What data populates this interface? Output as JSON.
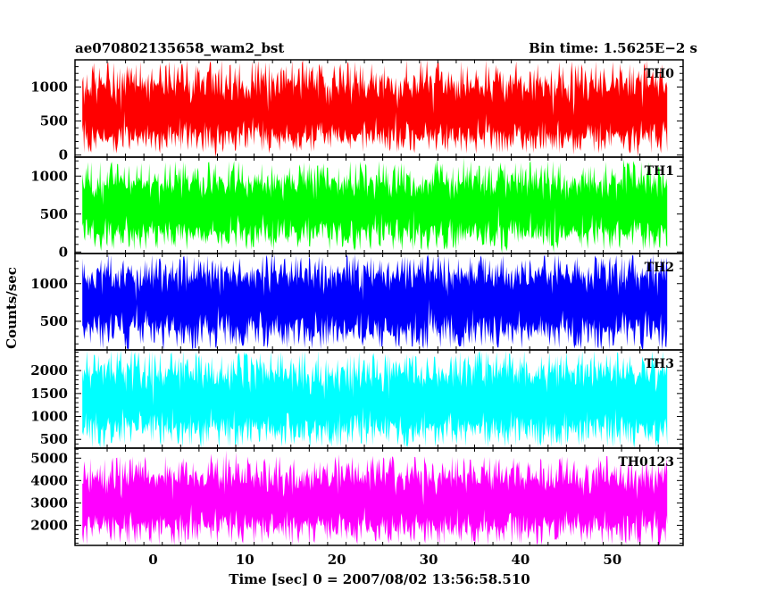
{
  "header": {
    "left_title": "ae070802135658_wam2_bst",
    "right_title": "Bin time: 1.5625E−2 s"
  },
  "axes": {
    "xlabel": "Time [sec] 0 = 2007/08/02 13:56:58.510",
    "ylabel": "Counts/sec"
  },
  "chart_data": {
    "type": "line",
    "xlim": [
      -8.5,
      57.7
    ],
    "data_x_range": [
      -7.7,
      56.0
    ],
    "x_ticks": [
      0,
      10,
      20,
      30,
      40,
      50
    ],
    "x_tick_labels": [
      "0",
      "10",
      "20",
      "30",
      "40",
      "50"
    ],
    "panels": [
      {
        "name": "TH0",
        "color": "#ff0000",
        "ylim": [
          -30,
          1400
        ],
        "y_ticks": [
          0,
          500,
          1000
        ],
        "y_tick_labels": [
          "0",
          "500",
          "1000"
        ],
        "mean": 600,
        "low": 20,
        "high": 1400
      },
      {
        "name": "TH1",
        "color": "#00ff00",
        "ylim": [
          -20,
          1250
        ],
        "y_ticks": [
          0,
          500,
          1000
        ],
        "y_tick_labels": [
          "0",
          "500",
          "1000"
        ],
        "mean": 560,
        "low": 10,
        "high": 1200
      },
      {
        "name": "TH2",
        "color": "#0000ff",
        "ylim": [
          120,
          1400
        ],
        "y_ticks": [
          500,
          1000
        ],
        "y_tick_labels": [
          "500",
          "1000"
        ],
        "mean": 750,
        "low": 120,
        "high": 1400
      },
      {
        "name": "TH3",
        "color": "#00ffff",
        "ylim": [
          310,
          2450
        ],
        "y_ticks": [
          500,
          1000,
          1500,
          2000
        ],
        "y_tick_labels": [
          "500",
          "1000",
          "1500",
          "2000"
        ],
        "mean": 1300,
        "low": 310,
        "high": 2450
      },
      {
        "name": "TH0123",
        "color": "#ff00ff",
        "ylim": [
          1100,
          5450
        ],
        "y_ticks": [
          2000,
          3000,
          4000,
          5000
        ],
        "y_tick_labels": [
          "2000",
          "3000",
          "4000",
          "5000"
        ],
        "mean": 3000,
        "low": 1100,
        "high": 5100
      }
    ]
  }
}
